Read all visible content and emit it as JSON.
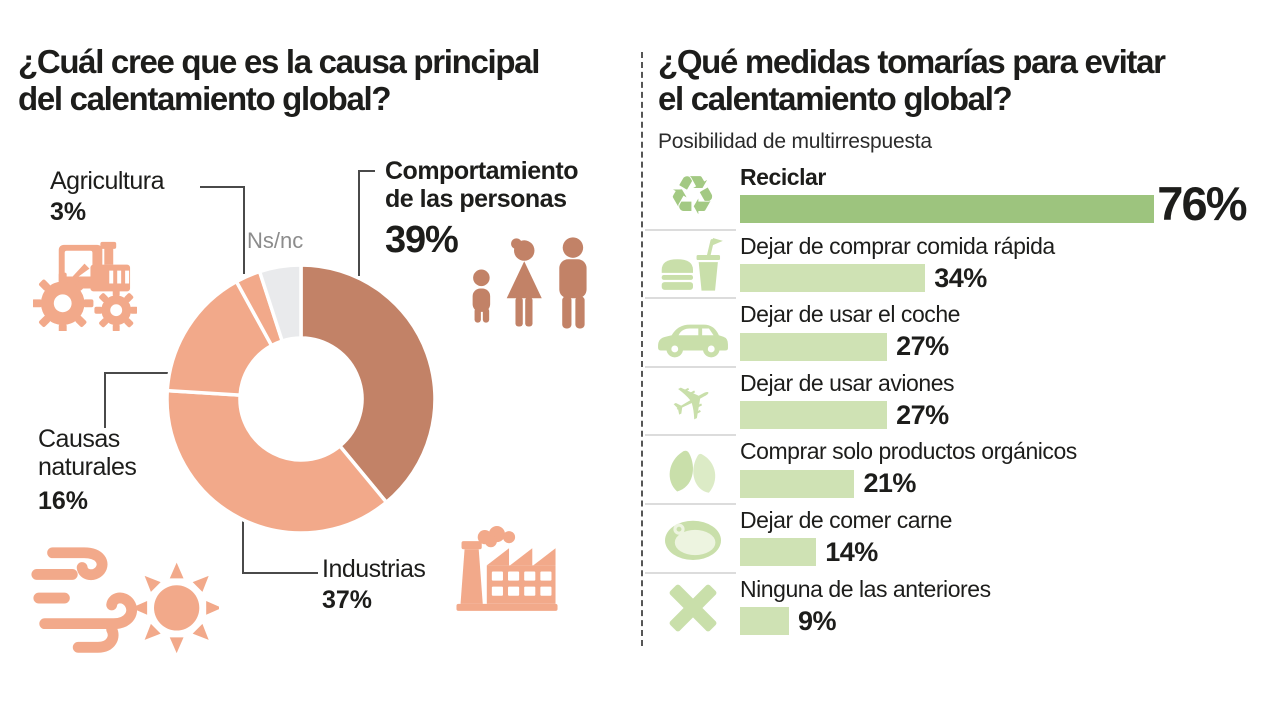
{
  "colors": {
    "salmon": "#f2a98a",
    "salmon_dark": "#c28267",
    "nsnc_gray": "#e9eaec",
    "green_dark": "#9dc47e",
    "green_light": "#cfe2b4",
    "green_icon": "#c9dfaa",
    "green_icon_active": "#a3c983",
    "text": "#1d1d1b",
    "muted_text": "#8c8c8c"
  },
  "left_panel": {
    "title": "¿Cuál cree que es la causa principal\ndel calentamiento global?"
  },
  "right_panel": {
    "title": "¿Qué medidas tomarías para evitar\nel calentamiento global?",
    "subtitle": "Posibilidad de multirrespuesta"
  },
  "icon_glyphs": {
    "recycle-icon": "♻",
    "plane-icon": "✈"
  },
  "chart_data": [
    {
      "type": "pie",
      "donut": true,
      "title": "¿Cuál cree que es la causa principal del calentamiento global?",
      "units": "%",
      "start_angle_deg": 0,
      "direction": "clockwise",
      "segments": [
        {
          "label": "Comportamiento de las personas",
          "value": 39,
          "color": "#c28267"
        },
        {
          "label": "Industrias",
          "value": 37,
          "color": "#f2a98a"
        },
        {
          "label": "Causas naturales",
          "value": 16,
          "color": "#f2a98a"
        },
        {
          "label": "Agricultura",
          "value": 3,
          "color": "#f2a98a"
        },
        {
          "label": "Ns/nc",
          "value": 5,
          "color": "#e9eaec"
        }
      ]
    },
    {
      "type": "bar",
      "orientation": "horizontal",
      "title": "¿Qué medidas tomarías para evitar el calentamiento global?",
      "subtitle": "Posibilidad de multirrespuesta",
      "units": "%",
      "xlim": [
        0,
        100
      ],
      "highlight_index": 0,
      "categories": [
        "Reciclar",
        "Dejar de comprar comida rápida",
        "Dejar de usar el coche",
        "Dejar de usar aviones",
        "Comprar solo productos orgánicos",
        "Dejar de comer carne",
        "Ninguna de las anteriores"
      ],
      "values": [
        76,
        34,
        27,
        27,
        21,
        14,
        9
      ],
      "icons": [
        "recycle-icon",
        "fastfood-icon",
        "car-icon",
        "plane-icon",
        "leaf-icon",
        "meat-icon",
        "x-icon"
      ]
    }
  ]
}
